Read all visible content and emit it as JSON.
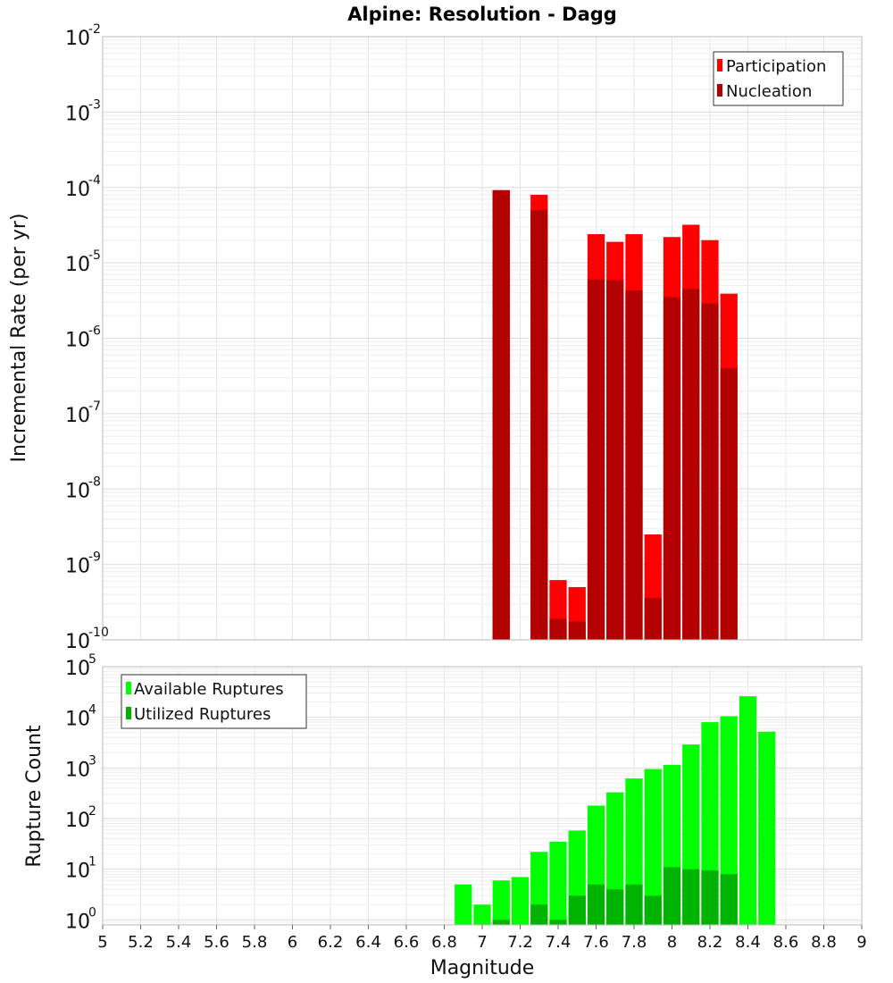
{
  "chart_data": {
    "title": "Alpine: Resolution - Dagg",
    "xlabel": "Magnitude",
    "xlim": [
      5,
      9
    ],
    "xticks": [
      "5",
      "5.2",
      "5.4",
      "5.6",
      "5.8",
      "6",
      "6.2",
      "6.4",
      "6.6",
      "6.8",
      "7",
      "7.2",
      "7.4",
      "7.6",
      "7.8",
      "8",
      "8.2",
      "8.4",
      "8.6",
      "8.8",
      "9"
    ],
    "bin_width": 0.1,
    "colors": {
      "participation": "#ff0000",
      "nucleation": "#b30000",
      "available": "#00ff00",
      "utilized": "#00b300",
      "grid": "#e6e6e6",
      "frame": "#bbbbbb"
    },
    "panels": [
      {
        "type": "bar",
        "yscale": "log",
        "ylabel": "Incremental Rate (per yr)",
        "ylim_exp": [
          -10,
          -2
        ],
        "ytick_base": "10",
        "yticks_exp": [
          "-10",
          "-9",
          "-8",
          "-7",
          "-6",
          "-5",
          "-4",
          "-3",
          "-2"
        ],
        "legend": {
          "position": "top-right",
          "entries": [
            "Participation",
            "Nucleation"
          ]
        },
        "series": [
          {
            "name": "Participation",
            "x": [
              7.1,
              7.3,
              7.4,
              7.5,
              7.6,
              7.7,
              7.8,
              7.9,
              8.0,
              8.1,
              8.2,
              8.3
            ],
            "values": [
              9.2e-05,
              8e-05,
              6.2e-10,
              5e-10,
              2.4e-05,
              1.9e-05,
              2.4e-05,
              2.5e-09,
              2.2e-05,
              3.2e-05,
              2e-05,
              3.9e-06
            ]
          },
          {
            "name": "Nucleation",
            "x": [
              7.1,
              7.3,
              7.4,
              7.5,
              7.6,
              7.7,
              7.8,
              7.9,
              8.0,
              8.1,
              8.2,
              8.3
            ],
            "values": [
              9.2e-05,
              5e-05,
              1.9e-10,
              1.75e-10,
              6e-06,
              5.9e-06,
              4.3e-06,
              3.6e-10,
              3.5e-06,
              4.5e-06,
              2.9e-06,
              4e-07
            ]
          }
        ]
      },
      {
        "type": "bar",
        "yscale": "log",
        "ylabel": "Rupture Count",
        "ylim_exp": [
          -0.1,
          5
        ],
        "ytick_base": "10",
        "yticks_exp": [
          "0",
          "1",
          "2",
          "3",
          "4",
          "5"
        ],
        "legend": {
          "position": "top-left",
          "entries": [
            "Available Ruptures",
            "Utilized Ruptures"
          ]
        },
        "series": [
          {
            "name": "Available Ruptures",
            "x": [
              6.9,
              7.0,
              7.1,
              7.2,
              7.3,
              7.4,
              7.5,
              7.6,
              7.7,
              7.8,
              7.9,
              8.0,
              8.1,
              8.2,
              8.3,
              8.4,
              8.5
            ],
            "values": [
              5,
              2,
              6,
              7,
              22,
              35,
              58,
              180,
              330,
              620,
              950,
              1150,
              2900,
              8000,
              10500,
              26000,
              5200
            ]
          },
          {
            "name": "Utilized Ruptures",
            "x": [
              7.1,
              7.3,
              7.4,
              7.5,
              7.6,
              7.7,
              7.8,
              7.9,
              8.0,
              8.1,
              8.2,
              8.3
            ],
            "values": [
              1,
              2,
              1,
              3,
              5,
              4,
              5,
              3,
              11,
              10,
              9.5,
              8
            ]
          }
        ]
      }
    ]
  }
}
